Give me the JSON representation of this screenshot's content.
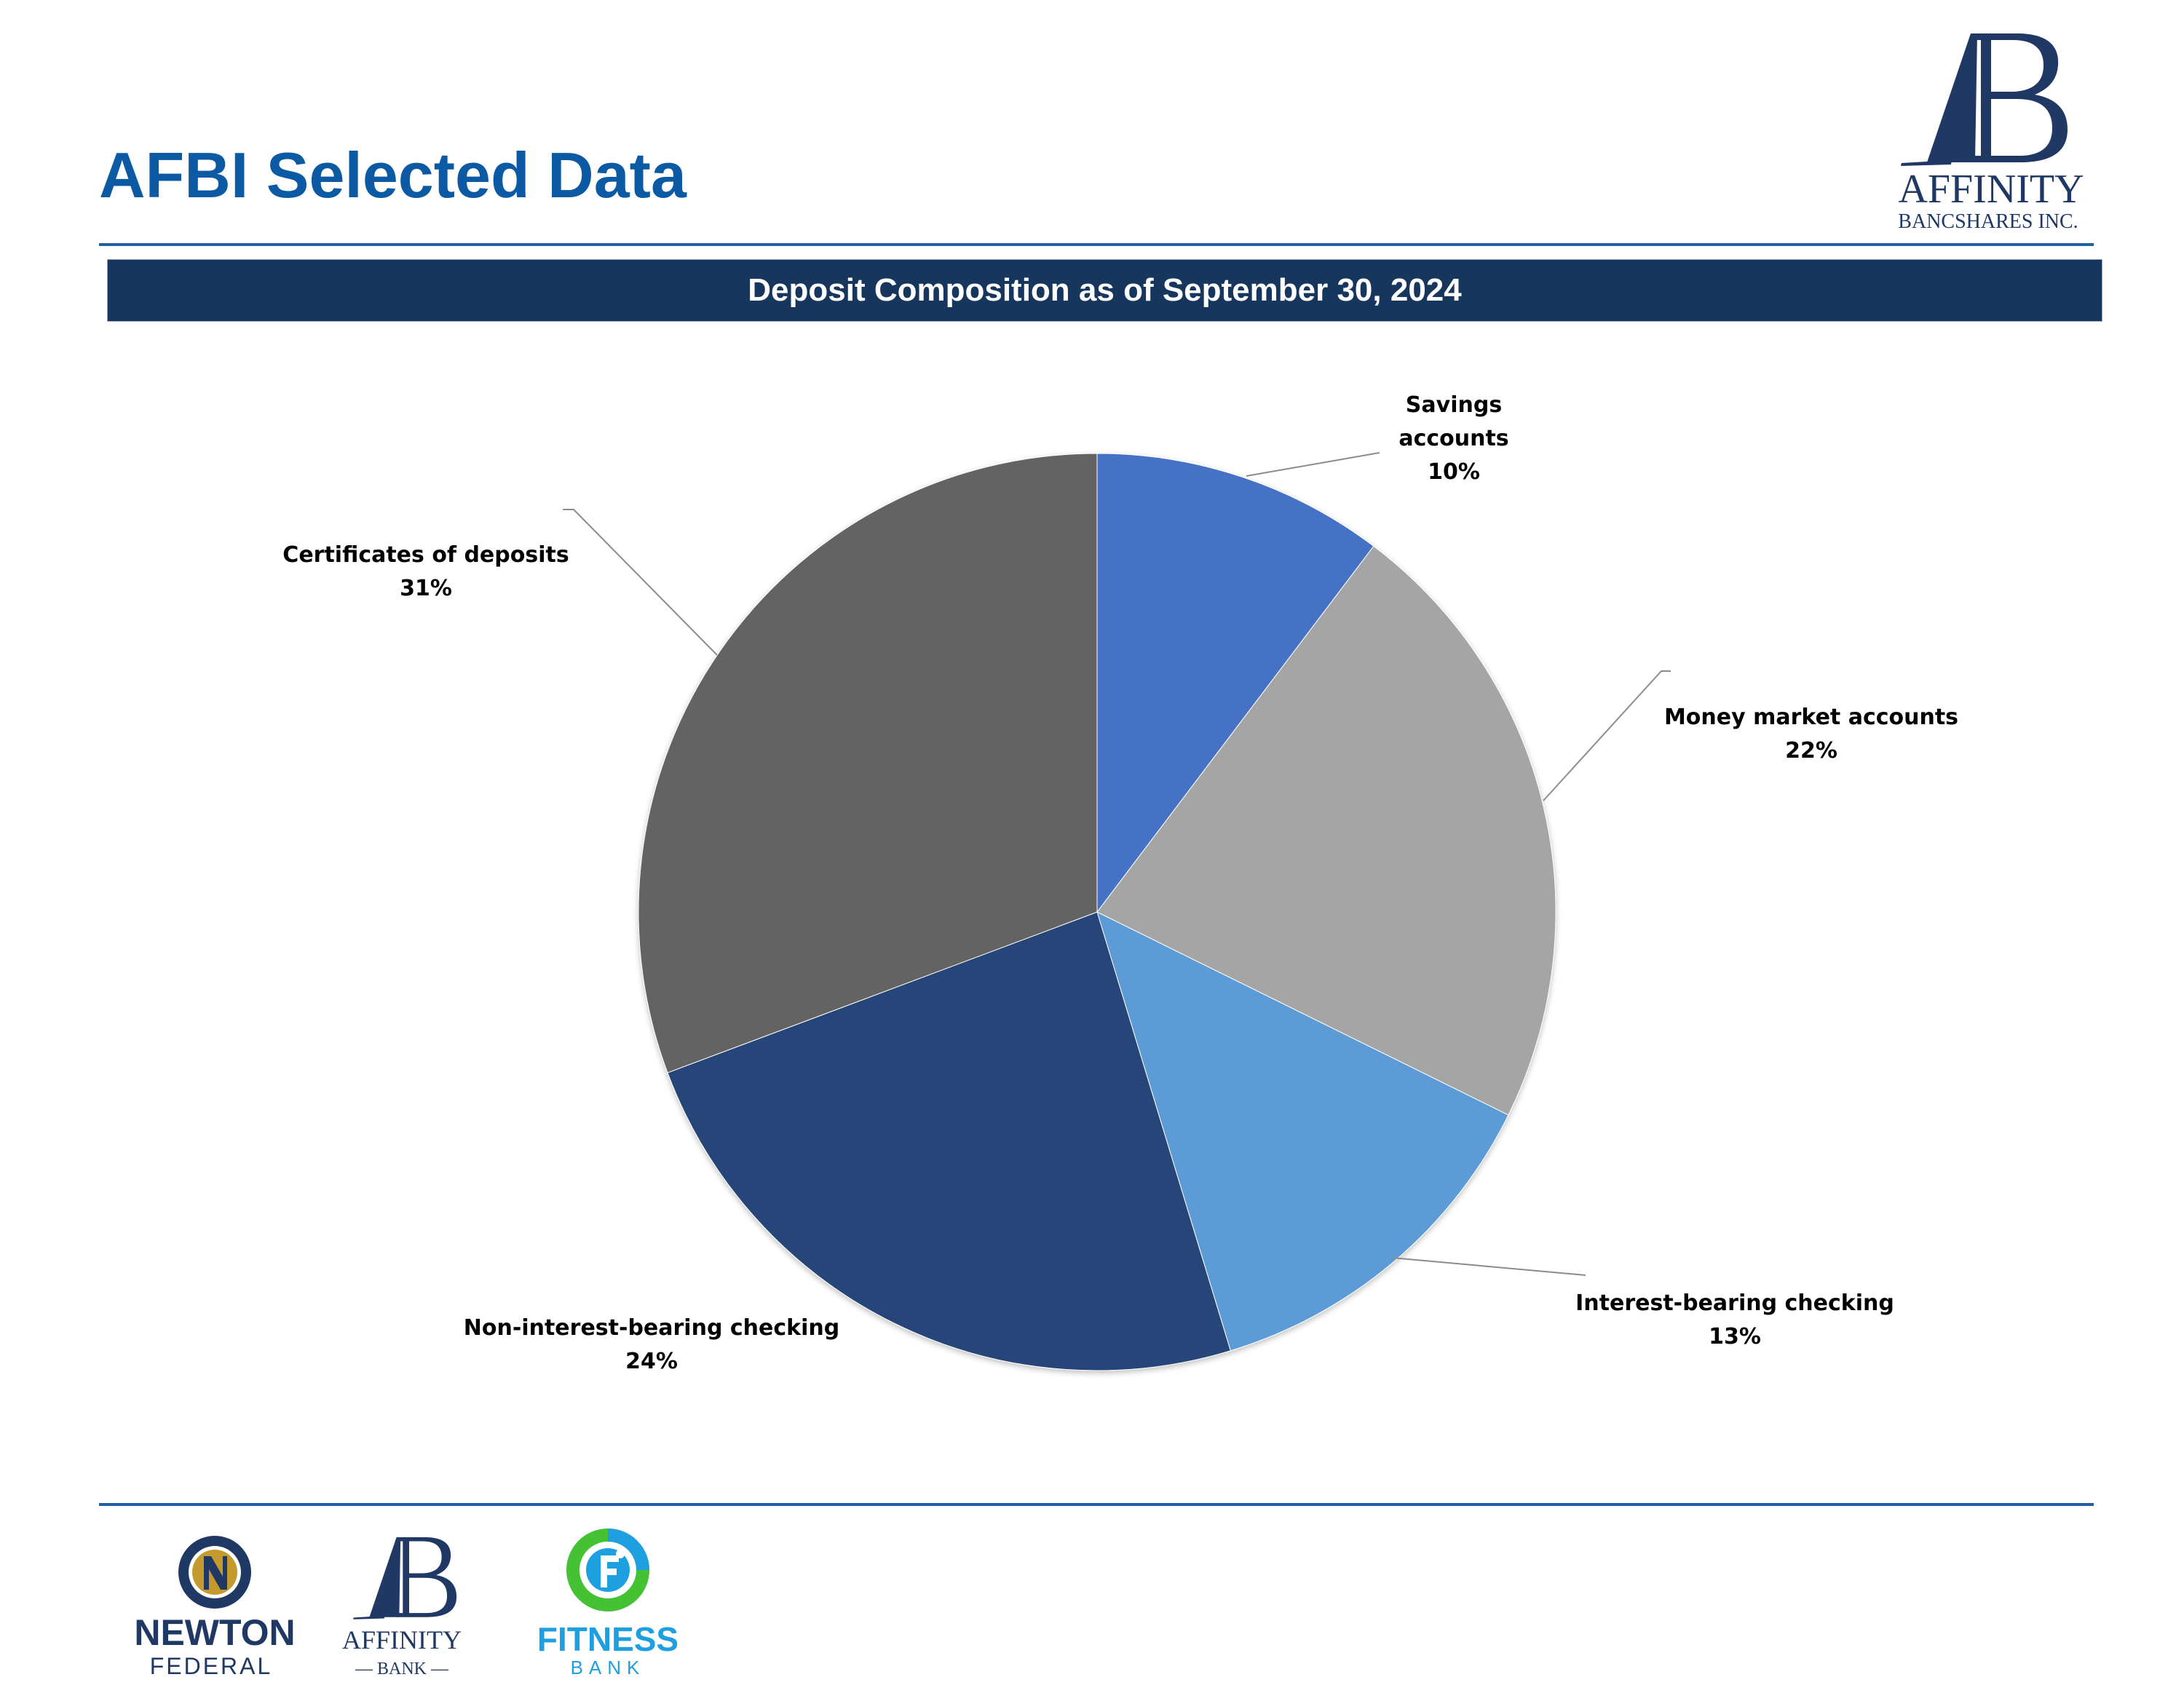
{
  "page": {
    "title": "AFBI Selected Data",
    "banner": "Deposit Composition as of September 30, 2024"
  },
  "logos": {
    "main": {
      "name": "Affinity Bancshares Inc.",
      "wordmark": "AFFINITY",
      "subline": "BANCSHARES INC.",
      "monogram": "AB"
    },
    "footer": [
      {
        "name": "Newton Federal",
        "line1": "NEWTON",
        "line2": "FEDERAL"
      },
      {
        "name": "Affinity Bank",
        "line1": "AFFINITY",
        "line2": "— BANK —"
      },
      {
        "name": "Fitness Bank",
        "line1": "FITNESS",
        "line2": "BANK"
      }
    ]
  },
  "colors": {
    "title": "#0b5aa3",
    "rule": "#1f5fa6",
    "banner_bg": "#17365d",
    "navy": "#1f3864"
  },
  "chart_data": {
    "type": "pie",
    "title": "Deposit Composition as of September 30, 2024",
    "start_angle": "12 o'clock, clockwise",
    "slices": [
      {
        "label": "Savings accounts",
        "label_lines": [
          "Savings",
          "accounts"
        ],
        "percent_label": "10%",
        "value": 10.3,
        "color": "#4472c4"
      },
      {
        "label": "Money market accounts",
        "label_lines": [
          "Money market accounts"
        ],
        "percent_label": "22%",
        "value": 22.0,
        "color": "#a5a5a5"
      },
      {
        "label": "Interest-bearing checking",
        "label_lines": [
          "Interest-bearing checking"
        ],
        "percent_label": "13%",
        "value": 13.0,
        "color": "#5b9bd5"
      },
      {
        "label": "Non-interest-bearing checking",
        "label_lines": [
          "Non-interest-bearing checking"
        ],
        "percent_label": "24%",
        "value": 24.0,
        "color": "#264478"
      },
      {
        "label": "Certificates of deposits",
        "label_lines": [
          "Certificates of deposits"
        ],
        "percent_label": "31%",
        "value": 30.7,
        "color": "#636363"
      }
    ]
  }
}
